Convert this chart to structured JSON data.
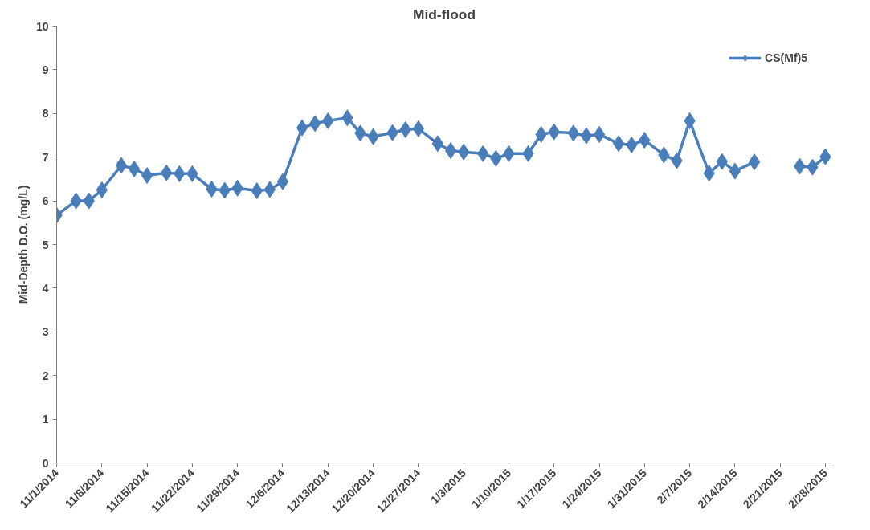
{
  "chart_data": {
    "type": "line",
    "title": "Mid-flood",
    "ylabel": "Mid-Depth D.O. (mg/L)",
    "x": [
      "2014-11-01",
      "2014-11-04",
      "2014-11-06",
      "2014-11-08",
      "2014-11-11",
      "2014-11-13",
      "2014-11-15",
      "2014-11-18",
      "2014-11-20",
      "2014-11-22",
      "2014-11-25",
      "2014-11-27",
      "2014-11-29",
      "2014-12-02",
      "2014-12-04",
      "2014-12-06",
      "2014-12-09",
      "2014-12-11",
      "2014-12-13",
      "2014-12-16",
      "2014-12-18",
      "2014-12-20",
      "2014-12-23",
      "2014-12-25",
      "2014-12-27",
      "2014-12-30",
      "2015-01-01",
      "2015-01-03",
      "2015-01-06",
      "2015-01-08",
      "2015-01-10",
      "2015-01-13",
      "2015-01-15",
      "2015-01-17",
      "2015-01-20",
      "2015-01-22",
      "2015-01-24",
      "2015-01-27",
      "2015-01-29",
      "2015-01-31",
      "2015-02-03",
      "2015-02-05",
      "2015-02-07",
      "2015-02-10",
      "2015-02-12",
      "2015-02-14",
      "2015-02-17",
      "2015-02-20",
      "2015-02-24",
      "2015-02-26",
      "2015-02-28"
    ],
    "series": [
      {
        "name": "CS(Mf)5",
        "color": "#4a7ebb",
        "values": [
          5.67,
          6.0,
          6.0,
          6.25,
          6.81,
          6.73,
          6.58,
          6.64,
          6.62,
          6.62,
          6.27,
          6.24,
          6.29,
          6.23,
          6.26,
          6.44,
          7.67,
          7.77,
          7.83,
          7.9,
          7.55,
          7.47,
          7.56,
          7.63,
          7.65,
          7.31,
          7.15,
          7.12,
          7.08,
          6.97,
          7.08,
          7.08,
          7.52,
          7.58,
          7.55,
          7.49,
          7.52,
          7.31,
          7.28,
          7.39,
          7.05,
          6.92,
          7.83,
          6.63,
          6.9,
          6.68,
          6.89,
          null,
          6.79,
          6.77,
          7.01
        ]
      }
    ],
    "xlim": [
      "2014-11-01",
      "2015-03-01"
    ],
    "xticks": [
      {
        "value": "2014-11-01",
        "label": "11/1/2014"
      },
      {
        "value": "2014-11-08",
        "label": "11/8/2014"
      },
      {
        "value": "2014-11-15",
        "label": "11/15/2014"
      },
      {
        "value": "2014-11-22",
        "label": "11/22/2014"
      },
      {
        "value": "2014-11-29",
        "label": "11/29/2014"
      },
      {
        "value": "2014-12-06",
        "label": "12/6/2014"
      },
      {
        "value": "2014-12-13",
        "label": "12/13/2014"
      },
      {
        "value": "2014-12-20",
        "label": "12/20/2014"
      },
      {
        "value": "2014-12-27",
        "label": "12/27/2014"
      },
      {
        "value": "2015-01-03",
        "label": "1/3/2015"
      },
      {
        "value": "2015-01-10",
        "label": "1/10/2015"
      },
      {
        "value": "2015-01-17",
        "label": "1/17/2015"
      },
      {
        "value": "2015-01-24",
        "label": "1/24/2015"
      },
      {
        "value": "2015-01-31",
        "label": "1/31/2015"
      },
      {
        "value": "2015-02-07",
        "label": "2/7/2015"
      },
      {
        "value": "2015-02-14",
        "label": "2/14/2015"
      },
      {
        "value": "2015-02-21",
        "label": "2/21/2015"
      },
      {
        "value": "2015-02-28",
        "label": "2/28/2015"
      }
    ],
    "ylim": [
      0,
      10
    ],
    "yticks": [
      0,
      1,
      2,
      3,
      4,
      5,
      6,
      7,
      8,
      9,
      10
    ],
    "grid": false,
    "legend": "top right",
    "marker": "diamond",
    "line_style": "solid"
  }
}
